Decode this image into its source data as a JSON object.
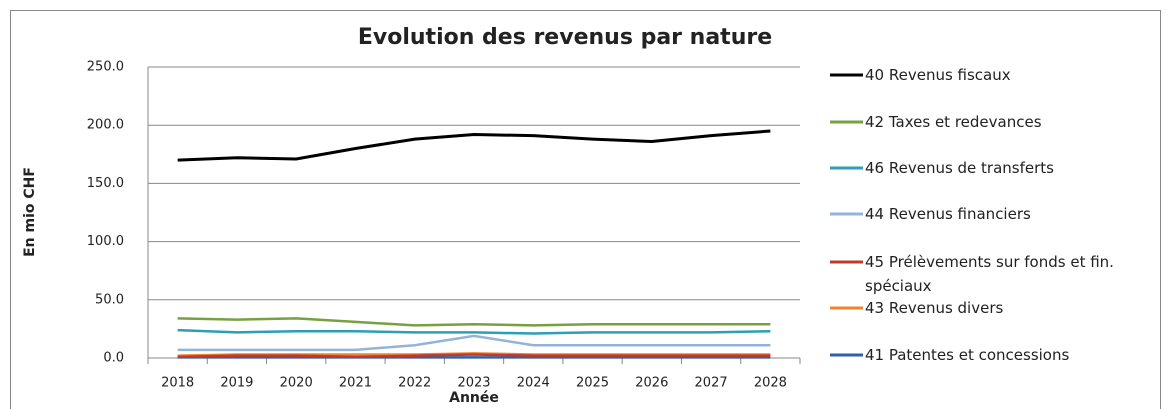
{
  "chart_data": {
    "type": "line",
    "title": "Evolution des revenus par nature",
    "xlabel": "Année",
    "ylabel": "En mio CHF",
    "categories": [
      "2018",
      "2019",
      "2020",
      "2021",
      "2022",
      "2023",
      "2024",
      "2025",
      "2026",
      "2027",
      "2028"
    ],
    "ylim": [
      0,
      250
    ],
    "yticks": [
      {
        "value": 0,
        "label": "0.0"
      },
      {
        "value": 50,
        "label": "50.0"
      },
      {
        "value": 100,
        "label": "100.0"
      },
      {
        "value": 150,
        "label": "150.0"
      },
      {
        "value": 200,
        "label": "200.0"
      },
      {
        "value": 250,
        "label": "250.0"
      }
    ],
    "grid": true,
    "legend": "right",
    "series": [
      {
        "name": "40 Revenus fiscaux",
        "color": "#000000",
        "values": [
          170,
          172,
          171,
          180,
          188,
          192,
          191,
          188,
          186,
          191,
          195
        ]
      },
      {
        "name": "42 Taxes et redevances",
        "color": "#77a040",
        "values": [
          34,
          33,
          34,
          31,
          28,
          29,
          28,
          29,
          29,
          29,
          29
        ]
      },
      {
        "name": "46 Revenus de transferts",
        "color": "#2e9eb5",
        "values": [
          24,
          22,
          23,
          23,
          22,
          22,
          21,
          22,
          22,
          22,
          23
        ]
      },
      {
        "name": "44 Revenus financiers",
        "color": "#95b3d7",
        "values": [
          7,
          7,
          7,
          7,
          11,
          19,
          11,
          11,
          11,
          11,
          11
        ]
      },
      {
        "name": "45 Prélèvements sur fonds et fin. spéciaux",
        "color": "#c0392b",
        "values": [
          1,
          2,
          2,
          1,
          2,
          3,
          2,
          2,
          2,
          2,
          2
        ]
      },
      {
        "name": "43 Revenus divers",
        "color": "#f0842c",
        "values": [
          2,
          3,
          3,
          3,
          3,
          4,
          3,
          3,
          3,
          3,
          3
        ]
      },
      {
        "name": "41 Patentes et concessions",
        "color": "#2e5fa8",
        "values": [
          0.5,
          0.5,
          0.5,
          0.5,
          0.5,
          0.5,
          0.5,
          0.5,
          0.5,
          0.5,
          0.5
        ]
      }
    ]
  }
}
